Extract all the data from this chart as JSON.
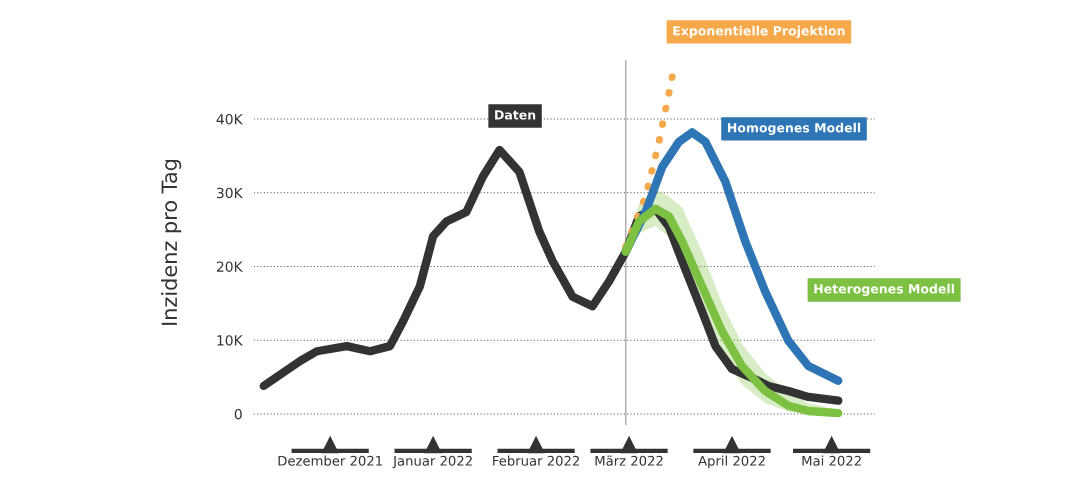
{
  "chart_data": {
    "type": "line",
    "ylabel": "Inzidenz pro Tag",
    "xlim": [
      "2021-11-22",
      "2022-05-28"
    ],
    "ylim": [
      -1.5,
      48
    ],
    "xticks": [
      {
        "value": "2021-12-15",
        "label": "Dezember 2021"
      },
      {
        "value": "2022-01-15",
        "label": "Januar 2022"
      },
      {
        "value": "2022-02-15",
        "label": "Februar 2022"
      },
      {
        "value": "2022-03-15",
        "label": "März 2022"
      },
      {
        "value": "2022-04-15",
        "label": "April 2022"
      },
      {
        "value": "2022-05-15",
        "label": "Mai 2022"
      }
    ],
    "yticks": [
      0,
      {
        "value": 10,
        "label": "10K"
      },
      {
        "value": 20,
        "label": "20K"
      },
      {
        "value": 30,
        "label": "30K"
      },
      {
        "value": 40,
        "label": "40K"
      }
    ],
    "grid": "y",
    "line_style": "solid",
    "ref_lines": [
      {
        "axis": "x",
        "value": "2022-03-14",
        "color": "#aaaaaa"
      }
    ],
    "series": [
      {
        "name": "Daten",
        "color": "#333333",
        "x": [
          "2021-11-25",
          "2021-12-06",
          "2021-12-11",
          "2021-12-20",
          "2021-12-27",
          "2022-01-02",
          "2022-01-06",
          "2022-01-11",
          "2022-01-15",
          "2022-01-19",
          "2022-01-25",
          "2022-01-30",
          "2022-02-04",
          "2022-02-10",
          "2022-02-16",
          "2022-02-20",
          "2022-02-26",
          "2022-03-04",
          "2022-03-09",
          "2022-03-14",
          "2022-03-18",
          "2022-03-23",
          "2022-03-27",
          "2022-03-31",
          "2022-04-06",
          "2022-04-10",
          "2022-04-15",
          "2022-04-20",
          "2022-04-26",
          "2022-05-02",
          "2022-05-08",
          "2022-05-17"
        ],
        "values": [
          3.8,
          7.2,
          8.5,
          9.2,
          8.5,
          9.2,
          12.6,
          17.3,
          24.1,
          26.1,
          27.4,
          32.2,
          35.8,
          32.8,
          24.7,
          20.7,
          15.9,
          14.6,
          18.0,
          22.0,
          26.8,
          27.8,
          25.4,
          20.7,
          13.9,
          9.2,
          6.1,
          5.1,
          3.8,
          3.1,
          2.3,
          1.8
        ]
      },
      {
        "name": "Exponentielle Projektion",
        "color": "#f5a94a",
        "line_style": "dotted",
        "x": [
          "2022-03-14",
          "2022-03-20",
          "2022-03-24",
          "2022-03-28"
        ],
        "values": [
          22.7,
          29.5,
          36.9,
          45.7
        ]
      },
      {
        "name": "Homogenes Modell",
        "color": "#2e75b6",
        "x": [
          "2022-03-14",
          "2022-03-20",
          "2022-03-25",
          "2022-03-30",
          "2022-04-03",
          "2022-04-07",
          "2022-04-13",
          "2022-04-19",
          "2022-04-25",
          "2022-05-02",
          "2022-05-08",
          "2022-05-17"
        ],
        "values": [
          22.0,
          27.4,
          33.5,
          36.9,
          38.2,
          36.9,
          31.5,
          23.4,
          16.6,
          9.9,
          6.5,
          4.5
        ]
      },
      {
        "name": "Heterogenes Modell",
        "color": "#7dc143",
        "x": [
          "2022-03-14",
          "2022-03-18",
          "2022-03-23",
          "2022-03-27",
          "2022-03-31",
          "2022-04-06",
          "2022-04-12",
          "2022-04-18",
          "2022-04-25",
          "2022-05-02",
          "2022-05-08",
          "2022-05-17"
        ],
        "values": [
          22.0,
          26.1,
          27.8,
          26.8,
          23.4,
          17.3,
          11.2,
          6.5,
          3.1,
          1.1,
          0.4,
          0.1
        ],
        "lower": [
          22.0,
          24.5,
          25.5,
          24.0,
          20.0,
          13.5,
          8.0,
          4.0,
          1.5,
          0.3,
          0.1,
          0.0
        ],
        "upper": [
          22.0,
          28.5,
          30.5,
          29.5,
          28.0,
          22.0,
          15.0,
          9.5,
          5.5,
          3.0,
          1.5,
          0.5
        ]
      }
    ]
  }
}
